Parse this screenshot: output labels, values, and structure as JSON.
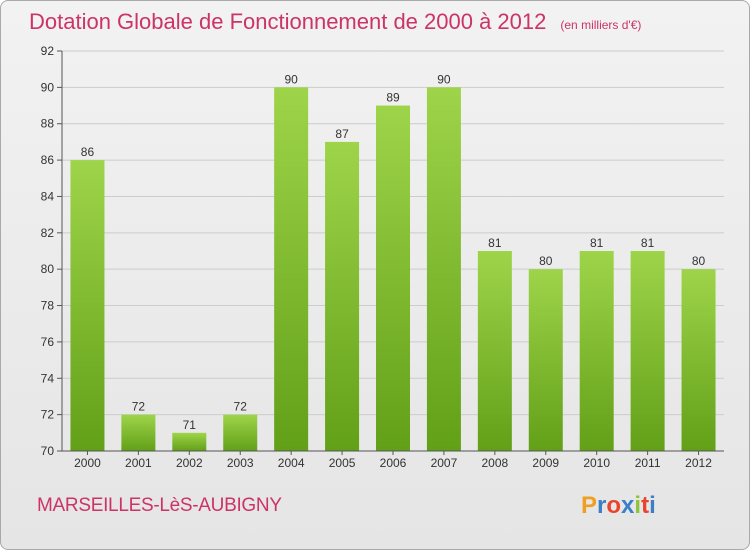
{
  "header": {
    "title": "Dotation Globale de Fonctionnement de 2000 à 2012",
    "subtitle": "(en milliers d'€)"
  },
  "footer": {
    "commune": "MARSEILLES-LèS-AUBIGNY",
    "logo_letters": [
      "P",
      "r",
      "o",
      "x",
      "i",
      "t",
      "i"
    ],
    "logo_colors": [
      "#f0a020",
      "#3a7fc8",
      "#e8452c",
      "#3a7fc8",
      "#8cc43e",
      "#e8452c",
      "#3a7fc8"
    ]
  },
  "colors": {
    "bar_light": "#9ed44a",
    "bar_dark": "#62a018",
    "title": "#cc3366",
    "grid": "#cccccc"
  },
  "chart_data": {
    "type": "bar",
    "categories": [
      "2000",
      "2001",
      "2002",
      "2003",
      "2004",
      "2005",
      "2006",
      "2007",
      "2008",
      "2009",
      "2010",
      "2011",
      "2012"
    ],
    "values": [
      86,
      72,
      71,
      72,
      90,
      87,
      89,
      90,
      81,
      80,
      81,
      81,
      80
    ],
    "ylim": [
      70,
      92
    ],
    "yticks": [
      70,
      72,
      74,
      76,
      78,
      80,
      82,
      84,
      86,
      88,
      90,
      92
    ],
    "grid": true,
    "data_labels": true
  }
}
